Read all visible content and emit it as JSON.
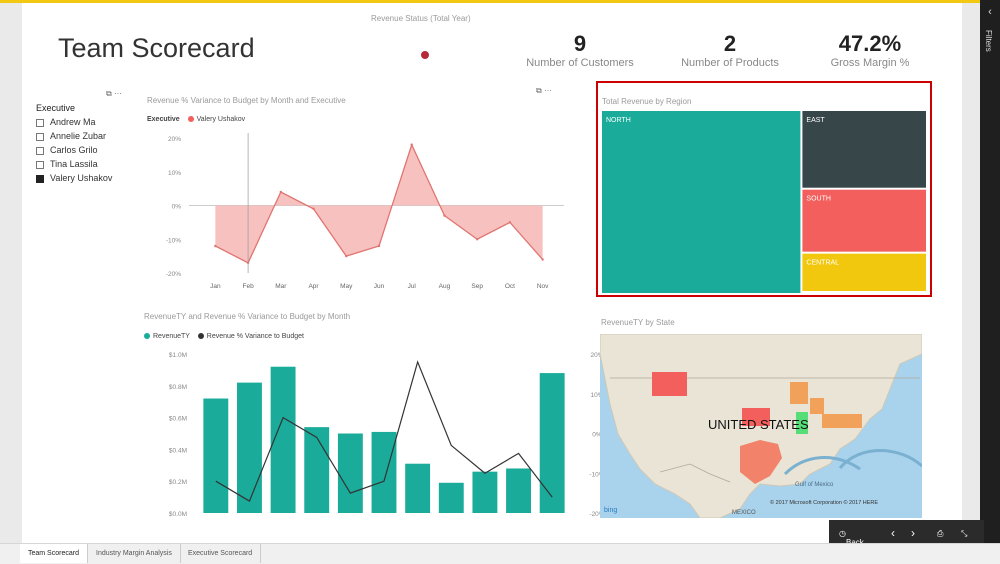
{
  "report": {
    "title": "Team Scorecard",
    "status_title": "Revenue Status (Total Year)"
  },
  "kpis": [
    {
      "value": "9",
      "label": "Number of Customers"
    },
    {
      "value": "2",
      "label": "Number of Products"
    },
    {
      "value": "47.2%",
      "label": "Gross Margin %"
    }
  ],
  "slicer": {
    "title": "Executive",
    "items": [
      {
        "label": "Andrew Ma",
        "checked": false
      },
      {
        "label": "Annelie Zubar",
        "checked": false
      },
      {
        "label": "Carlos Grilo",
        "checked": false
      },
      {
        "label": "Tina Lassila",
        "checked": false
      },
      {
        "label": "Valery Ushakov",
        "checked": true
      }
    ]
  },
  "sidebar": {
    "filters_label": "Filters",
    "close_glyph": "‹"
  },
  "tabs": [
    {
      "label": "Team Scorecard",
      "active": true
    },
    {
      "label": "Industry Margin Analysis",
      "active": false
    },
    {
      "label": "Executive Scorecard",
      "active": false
    }
  ],
  "nav": {
    "back_label": "Back"
  },
  "visual_icons": {
    "focus_glyph": "⧉",
    "more_glyph": "···"
  },
  "colors": {
    "teal": "#1aab9a",
    "red": "#f25f5c",
    "dark": "#374649",
    "yellow": "#f2c80f",
    "accent_red_border": "#cc0000"
  },
  "chart_data": [
    {
      "type": "area",
      "title": "Revenue % Variance to Budget by Month and Executive",
      "legend_title": "Executive",
      "series": [
        {
          "name": "Valery Ushakov",
          "values": [
            -12,
            -17,
            4,
            -1,
            -15,
            -12,
            18,
            -3,
            -10,
            -5,
            -16
          ]
        }
      ],
      "categories": [
        "Jan",
        "Feb",
        "Mar",
        "Apr",
        "May",
        "Jun",
        "Jul",
        "Aug",
        "Sep",
        "Oct",
        "Nov"
      ],
      "y_ticks": [
        "20%",
        "10%",
        "0%",
        "-10%",
        "-20%"
      ],
      "ylim": [
        -20,
        20
      ]
    },
    {
      "type": "bar",
      "title": "RevenueTY and Revenue % Variance to Budget by Month",
      "categories": [
        "Jan",
        "Feb",
        "Mar",
        "Apr",
        "May",
        "Jun",
        "Jul",
        "Aug",
        "Sep",
        "Oct",
        "Nov"
      ],
      "series": [
        {
          "name": "RevenueTY",
          "type": "bar",
          "values": [
            0.72,
            0.82,
            0.92,
            0.54,
            0.5,
            0.51,
            0.31,
            0.19,
            0.26,
            0.28,
            0.88
          ]
        },
        {
          "name": "Revenue % Variance to Budget",
          "type": "line",
          "values": [
            -12,
            -17,
            4,
            -1,
            -15,
            -12,
            18,
            -3,
            -10,
            -5,
            -16
          ]
        }
      ],
      "y_left_ticks": [
        "$1.0M",
        "$0.8M",
        "$0.6M",
        "$0.4M",
        "$0.2M",
        "$0.0M"
      ],
      "y_right_ticks": [
        "20%",
        "10%",
        "0%",
        "-10%",
        "-20%"
      ],
      "ylim_left": [
        0,
        1.0
      ],
      "ylim_right": [
        -20,
        20
      ]
    },
    {
      "type": "treemap",
      "title": "Total Revenue by Region",
      "items": [
        {
          "label": "NORTH",
          "value": 60,
          "color": "#1aab9a"
        },
        {
          "label": "EAST",
          "value": 16,
          "color": "#374649"
        },
        {
          "label": "SOUTH",
          "value": 13,
          "color": "#f25f5c"
        },
        {
          "label": "CENTRAL",
          "value": 8,
          "color": "#f2c80f"
        }
      ]
    }
  ],
  "map": {
    "title": "RevenueTY by State",
    "country_label": "UNITED STATES",
    "gulf_label": "Gulf of Mexico",
    "mexico_label": "MEXICO",
    "bing_label": "bing",
    "copyright": "© 2017 Microsoft Corporation  © 2017 HERE"
  }
}
